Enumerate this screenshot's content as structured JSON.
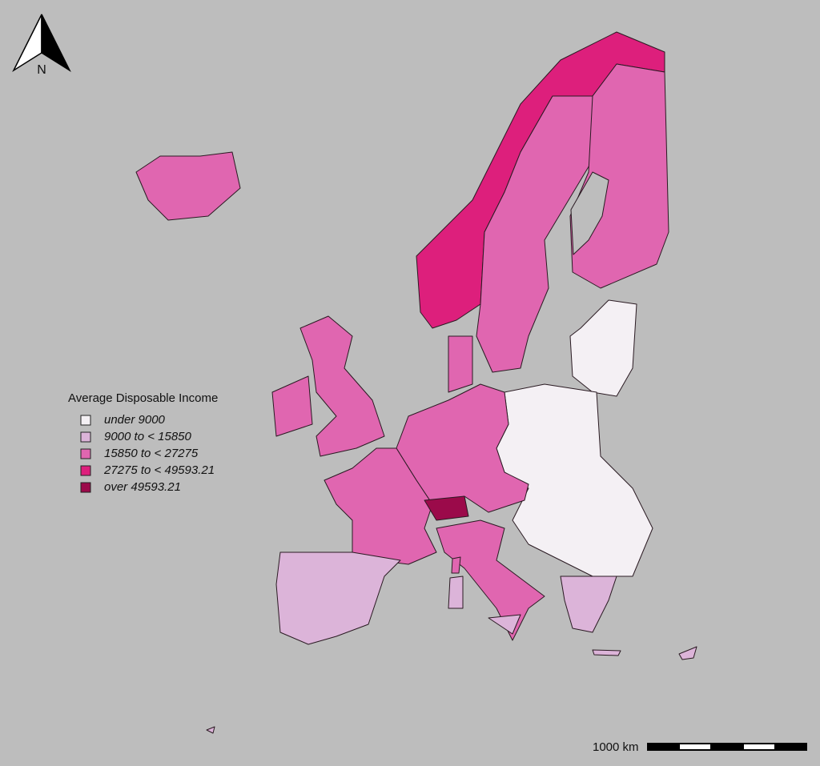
{
  "north_label": "N",
  "legend": {
    "title": "Average Disposable Income",
    "items": [
      {
        "label": "under 9000",
        "color": "#f4f0f4"
      },
      {
        "label": "9000  to < 15850",
        "color": "#dcb4d9"
      },
      {
        "label": "15850  to < 27275",
        "color": "#e066b0"
      },
      {
        "label": "27275  to < 49593.21",
        "color": "#dd1f7c"
      },
      {
        "label": "over 49593.21",
        "color": "#9b0a4a"
      }
    ]
  },
  "scale_bar": {
    "label": "1000 km"
  }
}
